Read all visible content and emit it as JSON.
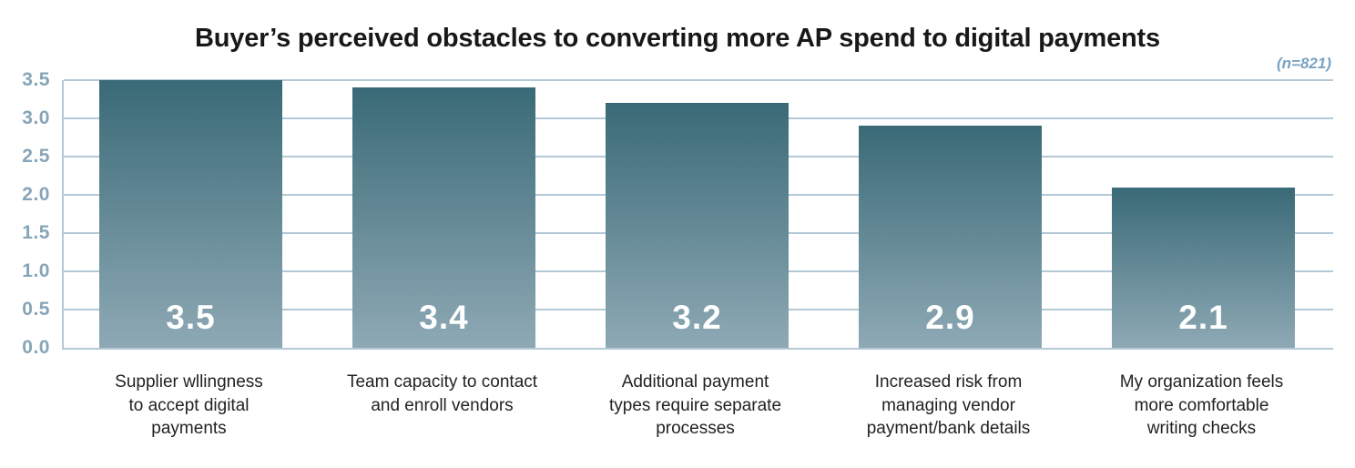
{
  "chart_data": {
    "type": "bar",
    "title": "Buyer’s perceived obstacles to converting more AP spend to digital payments",
    "sample_note": "(n=821)",
    "categories": [
      "Supplier wllingness\nto accept digital\npayments",
      "Team capacity to contact\nand enroll vendors",
      "Additional payment\ntypes require separate\nprocesses",
      "Increased risk from\nmanaging vendor\npayment/bank details",
      "My organization feels\nmore comfortable\nwriting checks"
    ],
    "values": [
      3.5,
      3.4,
      3.2,
      2.9,
      2.1
    ],
    "value_labels": [
      "3.5",
      "3.4",
      "3.2",
      "2.9",
      "2.1"
    ],
    "xlabel": "",
    "ylabel": "",
    "ylim": [
      0,
      3.5
    ],
    "yticks": [
      0,
      0.5,
      1.0,
      1.5,
      2.0,
      2.5,
      3.0,
      3.5
    ],
    "ytick_labels": [
      "0.0",
      "0.5",
      "1.0",
      "1.5",
      "2.0",
      "2.5",
      "3.0",
      "3.5"
    ],
    "grid": "horizontal",
    "legend_position": "none",
    "colors": {
      "title_color": "#1a1718",
      "note_color": "#78a3c4",
      "grid_color": "#b3c9d6",
      "ytick_color": "#87a5b8",
      "bar_top_color": "#3a6a77",
      "bar_bottom_color": "#8ea9b5",
      "value_color": "#ffffff",
      "category_color": "#242122"
    }
  }
}
